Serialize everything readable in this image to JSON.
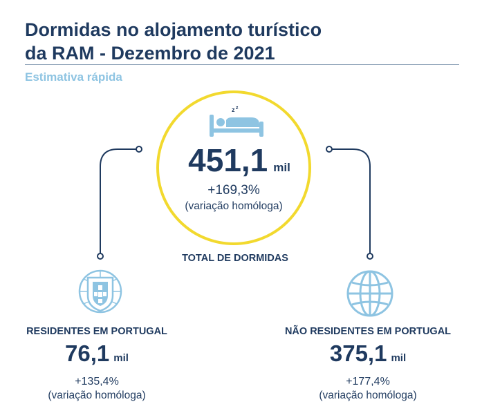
{
  "header": {
    "title_line1": "Dormidas no alojamento turístico",
    "title_line2": "da RAM - Dezembro de 2021",
    "subtitle": "Estimativa rápida"
  },
  "total": {
    "value": "451,1",
    "unit": "mil",
    "change": "+169,3%",
    "note": "(variação homóloga)",
    "label": "TOTAL DE DORMIDAS",
    "icon": "bed-icon"
  },
  "residents": {
    "label": "RESIDENTES EM PORTUGAL",
    "value": "76,1",
    "unit": "mil",
    "change": "+135,4%",
    "note": "(variação homóloga)",
    "icon": "portugal-shield-icon"
  },
  "non_residents": {
    "label": "NÃO RESIDENTES EM PORTUGAL",
    "value": "375,1",
    "unit": "mil",
    "change": "+177,4%",
    "note": "(variação homóloga)",
    "icon": "globe-icon"
  },
  "colors": {
    "primary": "#1f3a5f",
    "accent_yellow": "#f2d92e",
    "icon_blue": "#8ec4e2"
  }
}
